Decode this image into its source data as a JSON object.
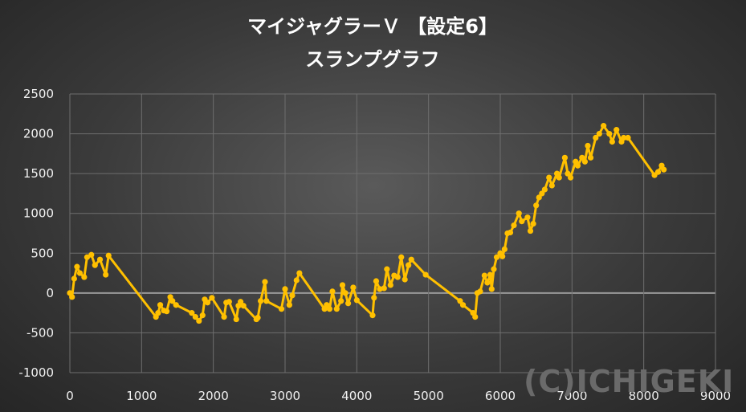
{
  "chart_data": {
    "type": "line",
    "title": "マイジャグラーＶ 【設定6】",
    "subtitle": "スランプグラフ",
    "xlabel": "",
    "ylabel": "",
    "xlim": [
      0,
      9000
    ],
    "ylim": [
      -1000,
      2500
    ],
    "x_ticks": [
      0,
      1000,
      2000,
      3000,
      4000,
      5000,
      6000,
      7000,
      8000,
      9000
    ],
    "y_ticks": [
      2500,
      2000,
      1500,
      1000,
      500,
      0,
      -500,
      -1000
    ],
    "x_tick_labels": [
      "0",
      "1000",
      "2000",
      "3000",
      "4000",
      "5000",
      "6000",
      "7000",
      "8000",
      "9000"
    ],
    "y_tick_labels": [
      "2500",
      "2000",
      "1500",
      "1000",
      "500",
      "0",
      "-500",
      "-1000"
    ],
    "grid": true,
    "legend": "none",
    "watermark": "(C)ICHIGEKI",
    "colors": {
      "line": "#FFC000",
      "grid": "#6e6e6e",
      "zero_line": "#9a9a9a"
    },
    "series": [
      {
        "x": [
          0,
          30,
          60,
          100,
          140,
          200,
          240,
          300,
          350,
          420,
          500,
          540,
          1200,
          1230,
          1260,
          1310,
          1350,
          1400,
          1430,
          1480,
          1700,
          1750,
          1800,
          1850,
          1880,
          1920,
          1980,
          2150,
          2180,
          2220,
          2320,
          2350,
          2380,
          2420,
          2600,
          2620,
          2660,
          2720,
          2740,
          2950,
          3000,
          3060,
          3100,
          3160,
          3200,
          3550,
          3580,
          3620,
          3660,
          3720,
          3780,
          3800,
          3840,
          3880,
          3950,
          4000,
          4220,
          4240,
          4270,
          4320,
          4380,
          4420,
          4470,
          4520,
          4570,
          4620,
          4670,
          4720,
          4760,
          4960,
          5440,
          5480,
          5620,
          5650,
          5680,
          5720,
          5780,
          5820,
          5860,
          5880,
          5910,
          5950,
          6000,
          6030,
          6060,
          6100,
          6140,
          6190,
          6260,
          6300,
          6380,
          6420,
          6460,
          6500,
          6540,
          6580,
          6620,
          6680,
          6720,
          6790,
          6820,
          6900,
          6940,
          6980,
          7050,
          7080,
          7140,
          7180,
          7220,
          7260,
          7330,
          7380,
          7440,
          7520,
          7560,
          7620,
          7690,
          7720,
          7780,
          8150,
          8200,
          8250,
          8280
        ],
        "y": [
          0,
          -50,
          180,
          330,
          250,
          200,
          450,
          480,
          350,
          420,
          230,
          470,
          -300,
          -250,
          -150,
          -220,
          -230,
          -50,
          -100,
          -150,
          -250,
          -300,
          -350,
          -280,
          -80,
          -120,
          -60,
          -300,
          -120,
          -110,
          -330,
          -160,
          -110,
          -160,
          -330,
          -310,
          -100,
          140,
          -100,
          -200,
          50,
          -150,
          -30,
          160,
          250,
          -200,
          -150,
          -200,
          20,
          -200,
          -100,
          100,
          0,
          -130,
          70,
          -90,
          -280,
          -60,
          150,
          50,
          60,
          300,
          100,
          220,
          200,
          450,
          170,
          350,
          420,
          230,
          -100,
          -150,
          -250,
          -300,
          0,
          20,
          220,
          130,
          230,
          50,
          300,
          450,
          500,
          460,
          550,
          750,
          760,
          850,
          1000,
          900,
          950,
          780,
          870,
          1100,
          1200,
          1250,
          1300,
          1450,
          1350,
          1500,
          1450,
          1700,
          1500,
          1450,
          1650,
          1600,
          1700,
          1650,
          1850,
          1700,
          1950,
          2000,
          2100,
          2000,
          1900,
          2050,
          1900,
          1950,
          1950,
          1480,
          1520,
          1600,
          1550
        ]
      }
    ]
  }
}
